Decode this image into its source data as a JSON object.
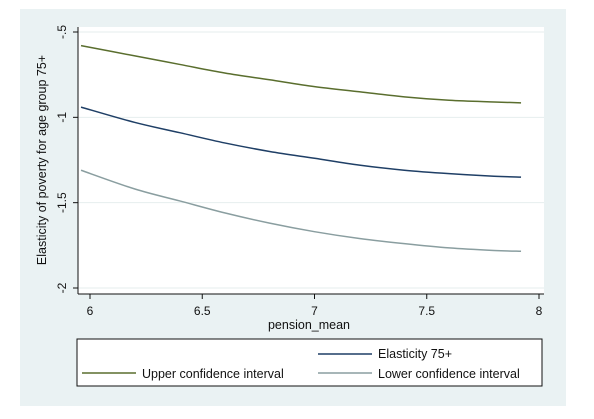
{
  "chart_data": {
    "type": "line",
    "xlabel": "pension_mean",
    "ylabel": "Elasticity of poverty for age group 75+",
    "xlim": [
      6,
      8
    ],
    "ylim": [
      -2,
      -0.5
    ],
    "x_ticks": [
      6,
      6.5,
      7,
      7.5,
      8
    ],
    "x_tick_labels": [
      "6",
      "6.5",
      "7",
      "7.5",
      "8"
    ],
    "y_ticks": [
      -0.5,
      -1,
      -1.5,
      -2
    ],
    "y_tick_labels": [
      "-.5",
      "-1",
      "-1.5",
      "-2"
    ],
    "grid": true,
    "legend_position": "bottom",
    "series": [
      {
        "name": "Elasticity 75+",
        "color": "#1f3f66",
        "x": [
          5.96,
          6.2,
          6.4,
          6.6,
          6.8,
          7.0,
          7.2,
          7.4,
          7.6,
          7.8,
          7.92
        ],
        "y": [
          -0.94,
          -1.03,
          -1.09,
          -1.15,
          -1.2,
          -1.24,
          -1.28,
          -1.31,
          -1.33,
          -1.345,
          -1.35
        ]
      },
      {
        "name": "Upper confidence interval",
        "color": "#5a6e2e",
        "x": [
          5.96,
          6.2,
          6.4,
          6.6,
          6.8,
          7.0,
          7.2,
          7.4,
          7.6,
          7.8,
          7.92
        ],
        "y": [
          -0.58,
          -0.64,
          -0.69,
          -0.74,
          -0.78,
          -0.82,
          -0.85,
          -0.88,
          -0.9,
          -0.91,
          -0.915
        ]
      },
      {
        "name": "Lower confidence interval",
        "color": "#8a9ea0",
        "x": [
          5.96,
          6.2,
          6.4,
          6.6,
          6.8,
          7.0,
          7.2,
          7.4,
          7.6,
          7.8,
          7.92
        ],
        "y": [
          -1.31,
          -1.42,
          -1.49,
          -1.56,
          -1.62,
          -1.67,
          -1.71,
          -1.74,
          -1.765,
          -1.78,
          -1.785
        ]
      }
    ]
  }
}
